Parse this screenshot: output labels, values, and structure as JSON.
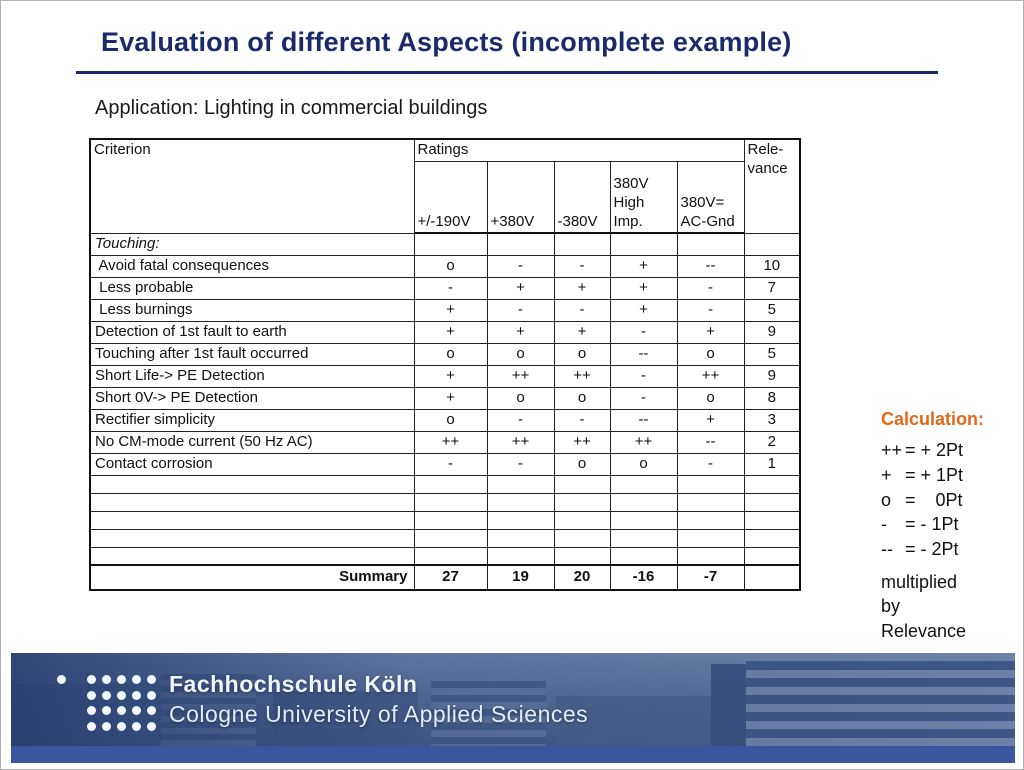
{
  "colors": {
    "accent": "#1b2a6b",
    "calc-title": "#e06a1a",
    "footer-strip": "#3a569f"
  },
  "slide": {
    "title": "Evaluation of different Aspects (incomplete example)",
    "subtitle": "Application: Lighting in commercial buildings"
  },
  "table": {
    "header": {
      "criterion": "Criterion",
      "ratings": "Ratings",
      "relevance": "Rele-\nvance",
      "columns": [
        "+/-190V",
        "+380V",
        "-380V",
        "380V\nHigh\nImp.",
        "380V=\nAC-Gnd"
      ]
    },
    "rows": [
      {
        "criterion": "Touching:",
        "italic": true,
        "ratings": [
          "",
          "",
          "",
          "",
          ""
        ],
        "relevance": ""
      },
      {
        "criterion": " Avoid fatal consequences",
        "ratings": [
          "o",
          "-",
          "-",
          "+",
          "--"
        ],
        "relevance": "10"
      },
      {
        "criterion": " Less probable",
        "ratings": [
          "-",
          "+",
          "+",
          "+",
          "-"
        ],
        "relevance": "7"
      },
      {
        "criterion": " Less burnings",
        "ratings": [
          "+",
          "-",
          "-",
          "+",
          "-"
        ],
        "relevance": "5"
      },
      {
        "criterion": "Detection of 1st fault to earth",
        "ratings": [
          "+",
          "+",
          "+",
          "-",
          "+"
        ],
        "relevance": "9"
      },
      {
        "criterion": "Touching after 1st fault occurred",
        "ratings": [
          "o",
          "o",
          "o",
          "--",
          "o"
        ],
        "relevance": "5"
      },
      {
        "criterion": "Short Life-> PE Detection",
        "ratings": [
          "+",
          "++",
          "++",
          "-",
          "++"
        ],
        "relevance": "9"
      },
      {
        "criterion": "Short 0V-> PE Detection",
        "ratings": [
          "+",
          "o",
          "o",
          "-",
          "o"
        ],
        "relevance": "8"
      },
      {
        "criterion": "Rectifier simplicity",
        "ratings": [
          "o",
          "-",
          "-",
          "--",
          "+"
        ],
        "relevance": "3"
      },
      {
        "criterion": "No CM-mode current (50 Hz AC)",
        "ratings": [
          "++",
          "++",
          "++",
          "++",
          "--"
        ],
        "relevance": "2"
      },
      {
        "criterion": "Contact corrosion",
        "ratings": [
          "-",
          "-",
          "o",
          "o",
          "-"
        ],
        "relevance": "1"
      }
    ],
    "empty_row_count": 5,
    "summary": {
      "label": "Summary",
      "values": [
        "27",
        "19",
        "20",
        "-16",
        "-7"
      ],
      "relevance": ""
    }
  },
  "calculation": {
    "title": "Calculation:",
    "rules": [
      {
        "symbol": "++",
        "equals": "= + 2Pt"
      },
      {
        "symbol": "+",
        "equals": "= + 1Pt"
      },
      {
        "symbol": "o",
        "equals": "=    0Pt"
      },
      {
        "symbol": "-",
        "equals": "= - 1Pt"
      },
      {
        "symbol": "--",
        "equals": "= - 2Pt"
      }
    ],
    "note": "multiplied\nby\nRelevance"
  },
  "footer": {
    "line1": "Fachhochschule Köln",
    "line2": "Cologne University of Applied Sciences"
  }
}
